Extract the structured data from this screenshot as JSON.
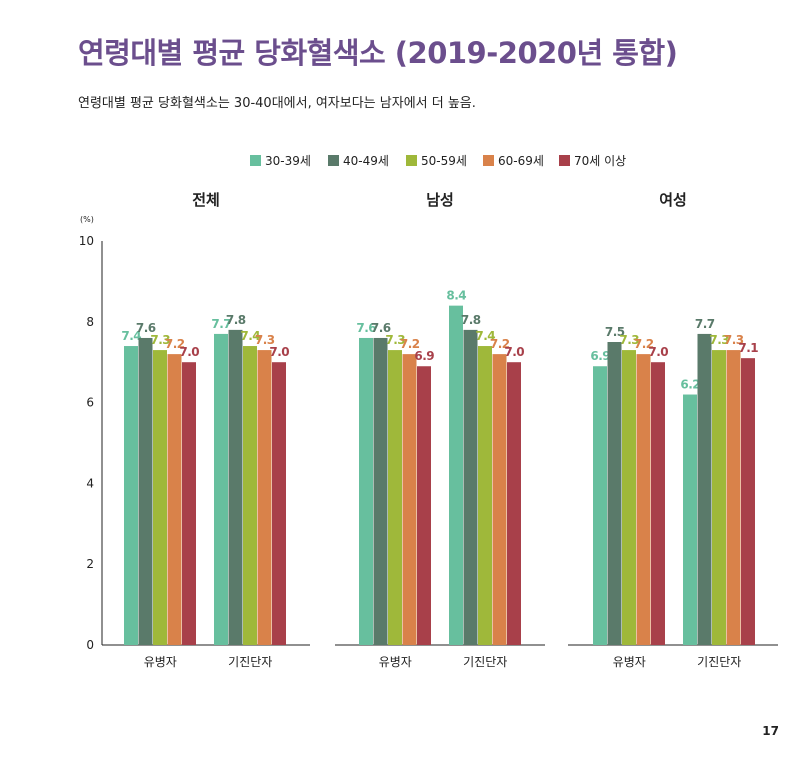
{
  "page": {
    "title": "연령대별 평균 당화혈색소 (2019-2020년 통합)",
    "subtitle": "연령대별 평균 당화혈색소는 30-40대에서, 여자보다는 남자에서 더 높음.",
    "page_number": "17"
  },
  "chart_data": {
    "type": "bar",
    "y_unit": "(%)",
    "ylim": [
      0,
      10
    ],
    "yticks": [
      0,
      2,
      4,
      6,
      8,
      10
    ],
    "grid": false,
    "legend_position": "top-center",
    "categories": [
      "유병자",
      "기진단자"
    ],
    "series": [
      {
        "name": "30-39세",
        "color": "#67bf9e"
      },
      {
        "name": "40-49세",
        "color": "#5a7a6a"
      },
      {
        "name": "50-59세",
        "color": "#9fb83a"
      },
      {
        "name": "60-69세",
        "color": "#d9824a"
      },
      {
        "name": "70세 이상",
        "color": "#a8404a"
      }
    ],
    "panels": [
      {
        "title": "전체",
        "values": [
          [
            7.4,
            7.6,
            7.3,
            7.2,
            7.0
          ],
          [
            7.7,
            7.8,
            7.4,
            7.3,
            7.0
          ]
        ]
      },
      {
        "title": "남성",
        "values": [
          [
            7.6,
            7.6,
            7.3,
            7.2,
            6.9
          ],
          [
            8.4,
            7.8,
            7.4,
            7.2,
            7.0
          ]
        ]
      },
      {
        "title": "여성",
        "values": [
          [
            6.9,
            7.5,
            7.3,
            7.2,
            7.0
          ],
          [
            6.2,
            7.7,
            7.3,
            7.3,
            7.1
          ]
        ]
      }
    ]
  }
}
